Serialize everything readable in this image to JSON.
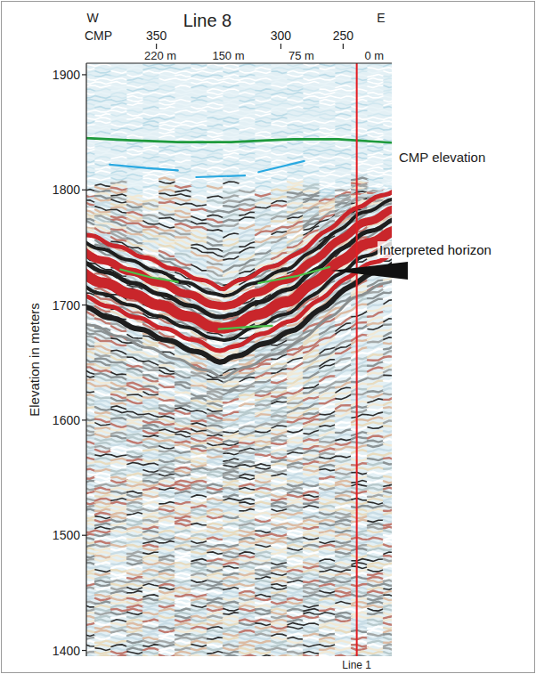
{
  "chart_data": {
    "type": "seismic_section",
    "title": "Line 8",
    "x_label_left": "W",
    "x_label_right": "E",
    "x_axis_label": "CMP",
    "y_axis_label": "Elevation in meters",
    "xlim": [
      296,
      -18
    ],
    "ylim": [
      1395,
      1910
    ],
    "xticks": [
      {
        "value": 220,
        "label": "220 m"
      },
      {
        "value": 150,
        "label": "150 m"
      },
      {
        "value": 75,
        "label": "75 m"
      },
      {
        "value": 0,
        "label": "0 m"
      }
    ],
    "cmp_ticks": [
      {
        "value": 224,
        "label": "350"
      },
      {
        "value": 96,
        "label": "300"
      },
      {
        "value": 32,
        "label": "250"
      }
    ],
    "yticks": [
      1400,
      1500,
      1600,
      1700,
      1800,
      1900
    ],
    "series": [
      {
        "name": "CMP elevation",
        "color": "#1e9a3c",
        "x": [
          296,
          250,
          202,
          147,
          110,
          83,
          37,
          -18
        ],
        "values": [
          1845,
          1843,
          1841.5,
          1841.5,
          1843,
          1844,
          1844,
          1841
        ]
      },
      {
        "color": "#4cc24a",
        "x": [
          261,
          230,
          202,
          null,
          160,
          130,
          105,
          null,
          119,
          80,
          46
        ],
        "values": [
          1731,
          1724,
          1720,
          null,
          1679,
          1681,
          1682,
          null,
          1719,
          1725,
          1733
        ]
      },
      {
        "color": "#29a9e1",
        "x": [
          272,
          235,
          202,
          null,
          183,
          133,
          null,
          119,
          72
        ],
        "values": [
          1822,
          1819,
          1817,
          null,
          1811,
          1812.5,
          null,
          1815.5,
          1825
        ]
      }
    ],
    "vertical_lines": [
      {
        "x": 18,
        "label": "Line 1",
        "color": "#e31e24"
      }
    ],
    "annotations": [
      {
        "text": "Interpreted horizon"
      }
    ]
  }
}
